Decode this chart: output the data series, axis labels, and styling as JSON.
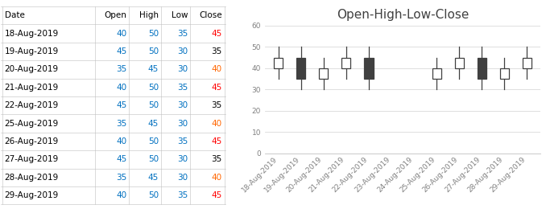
{
  "title": "Open-High-Low-Close",
  "dates": [
    "18-Aug-2019",
    "19-Aug-2019",
    "20-Aug-2019",
    "21-Aug-2019",
    "22-Aug-2019",
    "23-Aug-2019",
    "24-Aug-2019",
    "25-Aug-2019",
    "26-Aug-2019",
    "27-Aug-2019",
    "28-Aug-2019",
    "29-Aug-2019"
  ],
  "open": [
    40,
    45,
    35,
    40,
    45,
    null,
    null,
    35,
    40,
    45,
    35,
    40
  ],
  "high": [
    50,
    50,
    45,
    50,
    50,
    null,
    null,
    45,
    50,
    50,
    45,
    50
  ],
  "low": [
    35,
    30,
    30,
    35,
    30,
    null,
    null,
    30,
    35,
    30,
    30,
    35
  ],
  "close": [
    45,
    35,
    40,
    45,
    35,
    null,
    null,
    40,
    45,
    35,
    40,
    45
  ],
  "table_dates": [
    "18-Aug-2019",
    "19-Aug-2019",
    "20-Aug-2019",
    "21-Aug-2019",
    "22-Aug-2019",
    "25-Aug-2019",
    "26-Aug-2019",
    "27-Aug-2019",
    "28-Aug-2019",
    "29-Aug-2019"
  ],
  "table_open": [
    40,
    45,
    35,
    40,
    45,
    35,
    40,
    45,
    35,
    40
  ],
  "table_high": [
    50,
    50,
    45,
    50,
    50,
    45,
    50,
    50,
    45,
    50
  ],
  "table_low": [
    35,
    30,
    30,
    35,
    30,
    30,
    35,
    30,
    30,
    35
  ],
  "table_close": [
    45,
    35,
    40,
    45,
    35,
    40,
    45,
    35,
    40,
    45
  ],
  "close_colors": [
    "#ff0000",
    "#000000",
    "#ff6600",
    "#ff0000",
    "#000000",
    "#ff6600",
    "#ff0000",
    "#000000",
    "#ff6600",
    "#ff0000"
  ],
  "ylim": [
    0,
    60
  ],
  "yticks": [
    0,
    10,
    20,
    30,
    40,
    50,
    60
  ],
  "legend_labels": [
    "Open",
    "High",
    "Low",
    "Close"
  ],
  "box_width": 0.4,
  "bearish_color": "#404040",
  "bullish_color": "#ffffff",
  "border_color": "#404040",
  "whisker_color": "#404040",
  "grid_color": "#d9d9d9",
  "title_fontsize": 11,
  "tick_fontsize": 6.5,
  "legend_fontsize": 8,
  "table_col_labels": [
    "Date",
    "Open",
    "High",
    "Low",
    "Close"
  ],
  "table_date_color": "#000000",
  "table_num_color": "#0070c0",
  "table_header_color": "#000000"
}
